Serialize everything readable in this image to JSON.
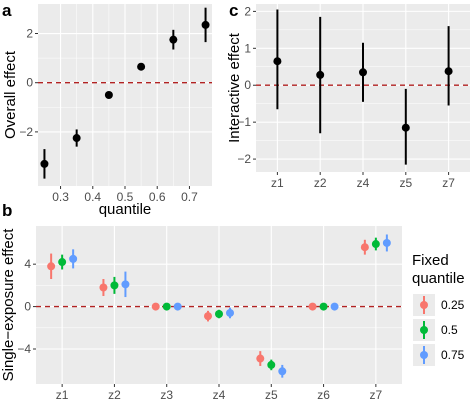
{
  "panels": {
    "a": "a",
    "b": "b",
    "c": "c"
  },
  "colors": {
    "panel_bg": "#ebebeb",
    "grid_major": "#ffffff",
    "ref_line": "#b22222",
    "point": "#000000",
    "q025": "#f8766d",
    "q05": "#00ba38",
    "q075": "#619cff"
  },
  "chart_data": [
    {
      "id": "a",
      "type": "scatter",
      "xlabel": "quantile",
      "ylabel": "Overall effect",
      "xlim": [
        0.23,
        0.77
      ],
      "ylim": [
        -4.2,
        3.2
      ],
      "xticks": [
        0.3,
        0.4,
        0.5,
        0.6,
        0.7
      ],
      "xtick_labels": [
        "0.3",
        "0.4",
        "0.5",
        "0.6",
        "0.7"
      ],
      "yticks": [
        -2,
        0,
        2
      ],
      "ytick_labels": [
        "−2",
        "0",
        "2"
      ],
      "reference_line": 0,
      "points": [
        {
          "x": 0.25,
          "y": -3.3,
          "lo": -3.9,
          "hi": -2.7
        },
        {
          "x": 0.35,
          "y": -2.25,
          "lo": -2.6,
          "hi": -1.9
        },
        {
          "x": 0.45,
          "y": -0.5,
          "lo": -0.6,
          "hi": -0.4
        },
        {
          "x": 0.55,
          "y": 0.65,
          "lo": 0.55,
          "hi": 0.8
        },
        {
          "x": 0.65,
          "y": 1.75,
          "lo": 1.35,
          "hi": 2.15
        },
        {
          "x": 0.75,
          "y": 2.35,
          "lo": 1.65,
          "hi": 3.05
        }
      ]
    },
    {
      "id": "c",
      "type": "scatter",
      "xlabel": "",
      "ylabel": "Interactive effect",
      "categories": [
        "z1",
        "z2",
        "z4",
        "z5",
        "z7"
      ],
      "ylim": [
        -2.35,
        2.2
      ],
      "yticks": [
        -2,
        -1,
        0,
        1,
        2
      ],
      "ytick_labels": [
        "−2",
        "−1",
        "0",
        "1",
        "2"
      ],
      "reference_line": 0,
      "points": [
        {
          "x": "z1",
          "y": 0.65,
          "lo": -0.65,
          "hi": 2.05
        },
        {
          "x": "z2",
          "y": 0.28,
          "lo": -1.3,
          "hi": 1.85
        },
        {
          "x": "z4",
          "y": 0.35,
          "lo": -0.45,
          "hi": 1.15
        },
        {
          "x": "z5",
          "y": -1.15,
          "lo": -2.15,
          "hi": -0.1
        },
        {
          "x": "z7",
          "y": 0.38,
          "lo": -0.55,
          "hi": 1.6
        }
      ]
    },
    {
      "id": "b",
      "type": "scatter",
      "xlabel": "",
      "ylabel": "Single−exposure effect",
      "categories": [
        "z1",
        "z2",
        "z3",
        "z4",
        "z5",
        "z6",
        "z7"
      ],
      "ylim": [
        -7.3,
        7.6
      ],
      "yticks": [
        -4,
        0,
        4
      ],
      "ytick_labels": [
        "−4",
        "0",
        "4"
      ],
      "reference_line": 0,
      "legend": {
        "title_line1": "Fixed",
        "title_line2": "quantile",
        "placement": "right"
      },
      "series": [
        {
          "name": "0.25",
          "color_key": "q025",
          "values": [
            3.8,
            1.8,
            0.0,
            -0.9,
            -4.9,
            0.0,
            5.6
          ],
          "lo": [
            2.6,
            1.0,
            -0.15,
            -1.4,
            -5.6,
            -0.15,
            4.9
          ],
          "hi": [
            5.0,
            2.6,
            0.15,
            -0.4,
            -4.2,
            0.15,
            6.3
          ]
        },
        {
          "name": "0.5",
          "color_key": "q05",
          "values": [
            4.2,
            2.0,
            0.0,
            -0.7,
            -5.5,
            0.0,
            5.9
          ],
          "lo": [
            3.5,
            1.2,
            -0.15,
            -1.1,
            -6.0,
            -0.15,
            5.3
          ],
          "hi": [
            4.9,
            2.8,
            0.15,
            -0.3,
            -5.0,
            0.15,
            6.5
          ]
        },
        {
          "name": "0.75",
          "color_key": "q075",
          "values": [
            4.5,
            2.1,
            0.0,
            -0.6,
            -6.1,
            0.0,
            6.0
          ],
          "lo": [
            3.6,
            0.9,
            -0.15,
            -1.1,
            -6.7,
            -0.15,
            5.2
          ],
          "hi": [
            5.4,
            3.3,
            0.15,
            -0.1,
            -5.5,
            0.15,
            6.8
          ]
        }
      ]
    }
  ]
}
